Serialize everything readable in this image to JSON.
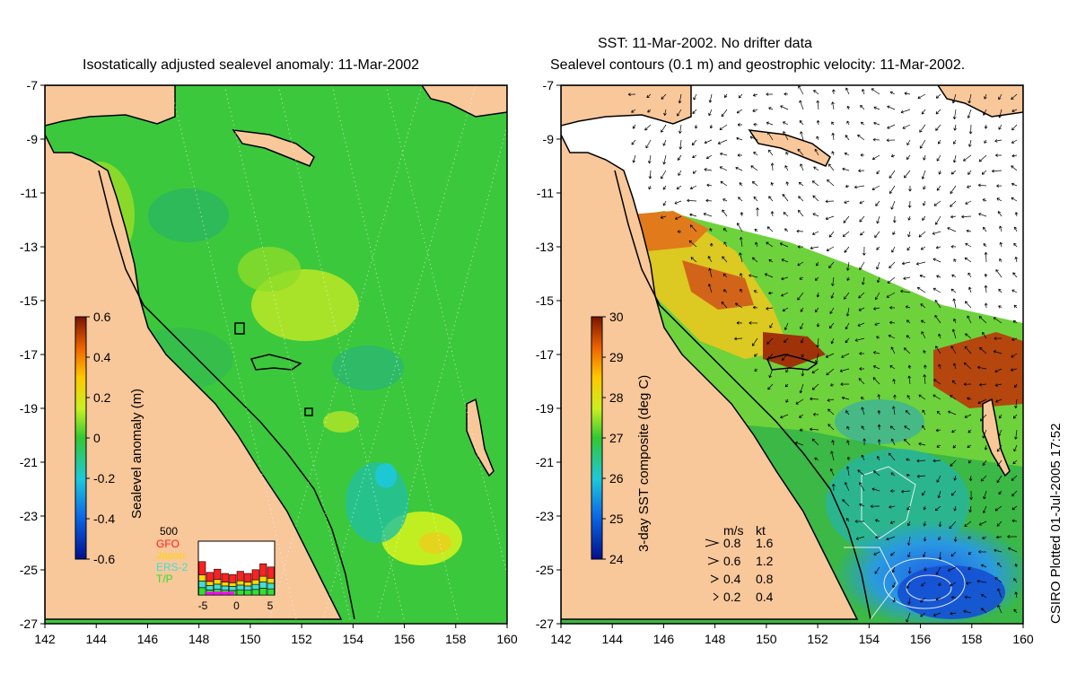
{
  "left_panel": {
    "title": "Isostatically adjusted sealevel anomaly: 11-Mar-2002",
    "colorbar": {
      "label": "Sealevel anomaly (m)",
      "ticks": [
        "0.6",
        "0.4",
        "0.2",
        "0",
        "-0.2",
        "-0.4",
        "-0.6"
      ]
    },
    "inset": {
      "top_label": "500",
      "satellites": [
        {
          "name": "GFO",
          "color": "#ff2020"
        },
        {
          "name": "Jason",
          "color": "#ffd700"
        },
        {
          "name": "ERS-2",
          "color": "#40e0d0"
        },
        {
          "name": "T/P",
          "color": "#30e030"
        }
      ],
      "xticks": [
        "-5",
        "0",
        "5"
      ],
      "bars": [
        0.62,
        0.42,
        0.48,
        0.4,
        0.38,
        0.44,
        0.4,
        0.47,
        0.58,
        0.52
      ]
    }
  },
  "right_panel": {
    "title_line1": "SST: 11-Mar-2002. No drifter data",
    "title_line2": "Sealevel contours (0.1 m) and geostrophic velocity: 11-Mar-2002.",
    "colorbar": {
      "label": "3-day SST composite (deg C)",
      "ticks": [
        "30",
        "29",
        "28",
        "27",
        "26",
        "25",
        "24"
      ]
    },
    "velocity_key": {
      "header_ms": "m/s",
      "header_kt": "kt",
      "rows": [
        {
          "ms": "0.8",
          "kt": "1.6"
        },
        {
          "ms": "0.6",
          "kt": "1.2"
        },
        {
          "ms": "0.4",
          "kt": "0.8"
        },
        {
          "ms": "0.2",
          "kt": "0.4"
        }
      ]
    }
  },
  "axes": {
    "y_ticks": [
      "-7",
      "-9",
      "-11",
      "-13",
      "-15",
      "-17",
      "-19",
      "-21",
      "-23",
      "-25",
      "-27"
    ],
    "x_ticks": [
      "142",
      "144",
      "146",
      "148",
      "150",
      "152",
      "154",
      "156",
      "158",
      "160"
    ]
  },
  "credit": "CSIRO Plotted 01-Jul-2005 17:52",
  "colors": {
    "land": "#f8c79a",
    "ocean_anomaly": "#3cc83c",
    "cloud": "#ffffff",
    "coast": "#000000"
  }
}
